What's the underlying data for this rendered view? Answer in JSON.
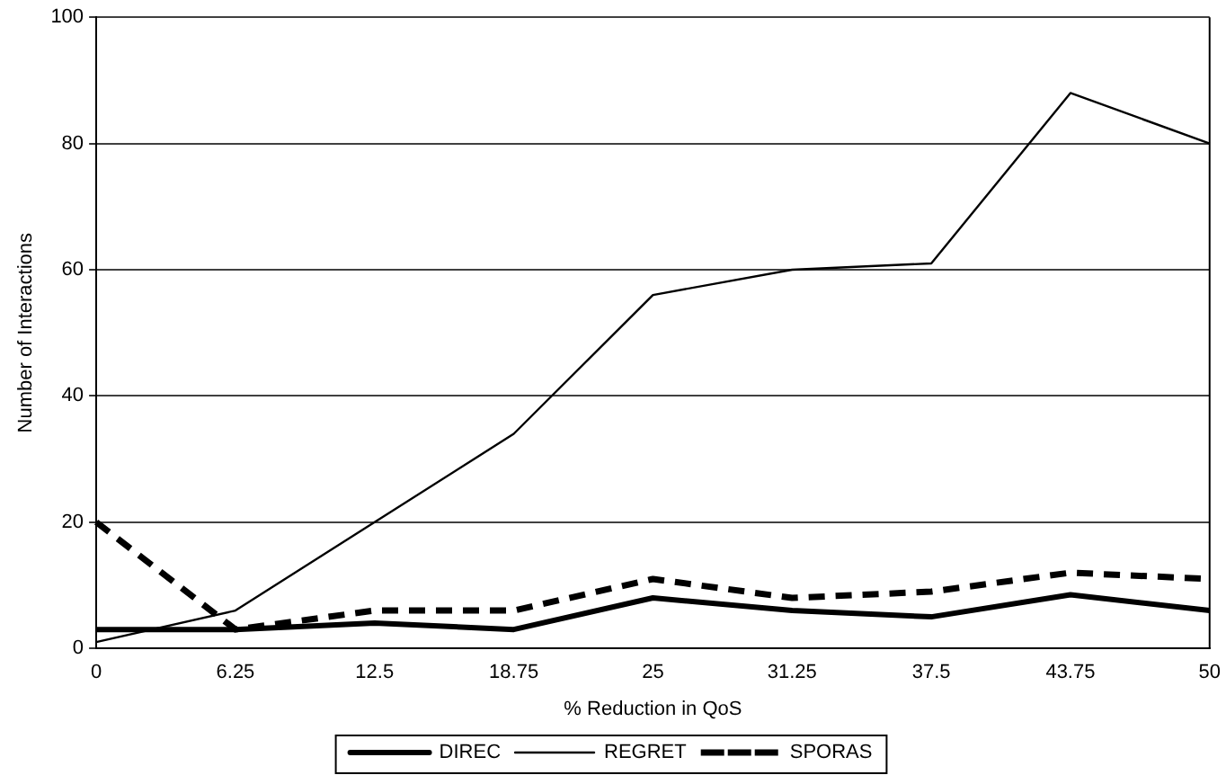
{
  "chart_data": {
    "type": "line",
    "xlabel": "% Reduction in QoS",
    "ylabel": "Number of Interactions",
    "categories": [
      "0",
      "6.25",
      "12.5",
      "18.75",
      "25",
      "31.25",
      "37.5",
      "43.75",
      "50"
    ],
    "series": [
      {
        "name": "DIREC",
        "color": "#000000",
        "line_style": "solid",
        "values": [
          3,
          3,
          4,
          3,
          8,
          6,
          5,
          8.5,
          6
        ]
      },
      {
        "name": "REGRET",
        "color": "#000000",
        "line_style": "solid",
        "values": [
          1,
          6,
          20,
          34,
          56,
          60,
          61,
          88,
          80
        ]
      },
      {
        "name": "SPORAS",
        "color": "#000000",
        "line_style": "dashed",
        "values": [
          20,
          3,
          6,
          6,
          11,
          8,
          9,
          12,
          11
        ]
      }
    ],
    "ylim": [
      0,
      100
    ],
    "yticks": [
      0,
      20,
      40,
      60,
      80,
      100
    ],
    "grid": "y",
    "legend": "bottom",
    "marker": "none"
  }
}
